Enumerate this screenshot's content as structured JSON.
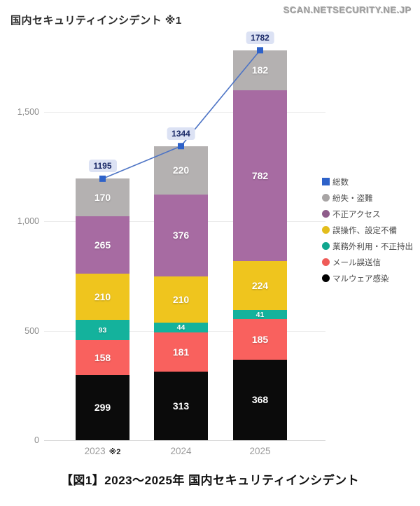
{
  "header": {
    "title": "国内セキュリティインシデント ※1",
    "watermark": "SCAN.NETSECURITY.NE.JP"
  },
  "caption": "【図1】2023〜2025年 国内セキュリティインシデント",
  "chart_data": {
    "type": "bar",
    "stacked": true,
    "title": "国内セキュリティインシデント ※1",
    "categories": [
      "2023",
      "2024",
      "2025"
    ],
    "category_notes": [
      "※2",
      "",
      ""
    ],
    "series": [
      {
        "name": "マルウェア感染",
        "color": "#0b0b0b",
        "values": [
          299,
          313,
          368
        ]
      },
      {
        "name": "メール誤送信",
        "color": "#f9615e",
        "values": [
          158,
          181,
          185
        ]
      },
      {
        "name": "業務外利用・不正持出",
        "color": "#14b29c",
        "values": [
          93,
          44,
          41
        ]
      },
      {
        "name": "誤操作、設定不備",
        "color": "#efc51e",
        "values": [
          210,
          210,
          224
        ]
      },
      {
        "name": "不正アクセス",
        "color": "#a76ba2",
        "values": [
          265,
          376,
          782
        ]
      },
      {
        "name": "紛失・盗難",
        "color": "#b4b1b1",
        "values": [
          170,
          220,
          182
        ]
      }
    ],
    "line_series": {
      "name": "総数",
      "color": "#2e62c9",
      "values": [
        1195,
        1344,
        1782
      ]
    },
    "y_ticks": [
      {
        "value": 0,
        "label": "0"
      },
      {
        "value": 500,
        "label": "500"
      },
      {
        "value": 1000,
        "label": "1,000"
      },
      {
        "value": 1500,
        "label": "1,500"
      }
    ],
    "ylim": [
      0,
      1875
    ],
    "grid": true,
    "legend_position": "right",
    "legend": [
      {
        "label": "総数",
        "color": "#2e62c9",
        "shape": "square"
      },
      {
        "label": "紛失・盗難",
        "color": "#a8a5a5",
        "shape": "circle"
      },
      {
        "label": "不正アクセス",
        "color": "#8f5c8b",
        "shape": "circle"
      },
      {
        "label": "誤操作、設定不備",
        "color": "#e3bd1c",
        "shape": "circle"
      },
      {
        "label": "業務外利用・不正持出",
        "color": "#10a78f",
        "shape": "circle"
      },
      {
        "label": "メール誤送信",
        "color": "#ef5b58",
        "shape": "circle"
      },
      {
        "label": "マルウェア感染",
        "color": "#000000",
        "shape": "circle"
      }
    ]
  }
}
